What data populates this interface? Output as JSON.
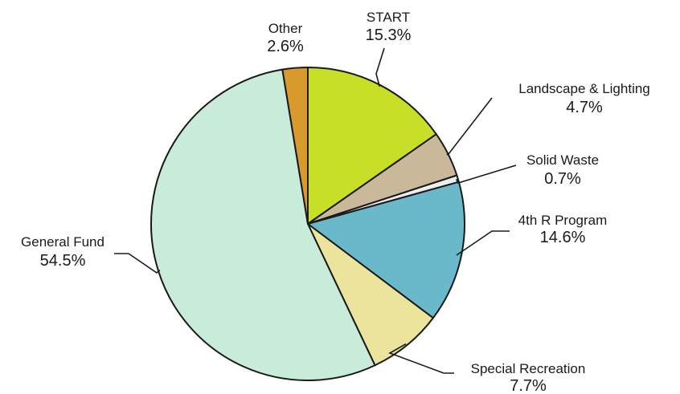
{
  "chart_data": {
    "type": "pie",
    "title": "",
    "unit": "%",
    "slices": [
      {
        "label": "START",
        "value": 15.3,
        "display": "15.3%",
        "color": "#c8df27"
      },
      {
        "label": "Landscape & Lighting",
        "value": 4.7,
        "display": "4.7%",
        "color": "#c9b99a"
      },
      {
        "label": "Solid Waste",
        "value": 0.7,
        "display": "0.7%",
        "color": "#eeeeee"
      },
      {
        "label": "4th R Program",
        "value": 14.6,
        "display": "14.6%",
        "color": "#6ab9cb"
      },
      {
        "label": "Special Recreation",
        "value": 7.7,
        "display": "7.7%",
        "color": "#ece49c"
      },
      {
        "label": "General Fund",
        "value": 54.5,
        "display": "54.5%",
        "color": "#c9ebd9"
      },
      {
        "label": "Other",
        "value": 2.6,
        "display": "2.6%",
        "color": "#d89a2c"
      }
    ],
    "start_angle_deg": 0,
    "direction": "clockwise"
  }
}
